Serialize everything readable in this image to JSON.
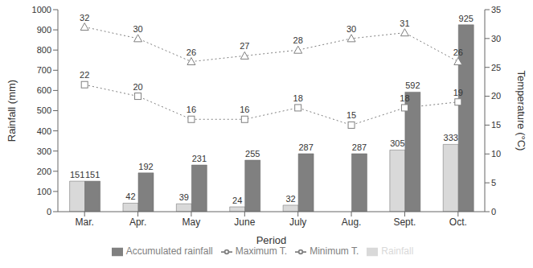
{
  "chart_data": {
    "type": "bar",
    "x_label": "Period",
    "y_label": "Rainfall (mm)",
    "y2_label": "Temperature (°C)",
    "categories": [
      "Mar.",
      "Apr.",
      "May",
      "June",
      "July",
      "Aug.",
      "Sept.",
      "Oct."
    ],
    "series": [
      {
        "name": "Rainfall",
        "type": "bar",
        "color": "#d9d9d9",
        "values": [
          151,
          42,
          39,
          24,
          32,
          0,
          305,
          333
        ]
      },
      {
        "name": "Accumulated rainfall",
        "type": "bar",
        "color": "#808080",
        "values": [
          151,
          192,
          231,
          255,
          287,
          287,
          592,
          925
        ]
      },
      {
        "name": "Maximum T.",
        "type": "line",
        "axis": "y2",
        "color": "#808080",
        "marker": "triangle",
        "line_style": "dotted",
        "values": [
          32,
          30,
          26,
          27,
          28,
          30,
          31,
          26
        ]
      },
      {
        "name": "Minimum T.",
        "type": "line",
        "axis": "y2",
        "color": "#808080",
        "marker": "square",
        "line_style": "dotted",
        "values": [
          22,
          20,
          16,
          16,
          18,
          15,
          18,
          19
        ]
      }
    ],
    "ylim": [
      0,
      1000
    ],
    "yticks": [
      0,
      100,
      200,
      300,
      400,
      500,
      600,
      700,
      800,
      900,
      1000
    ],
    "y2lim": [
      0,
      35
    ],
    "y2ticks": [
      0,
      5,
      10,
      15,
      20,
      25,
      30,
      35
    ],
    "data_labels": true,
    "legend": "bottom",
    "grid": false
  }
}
